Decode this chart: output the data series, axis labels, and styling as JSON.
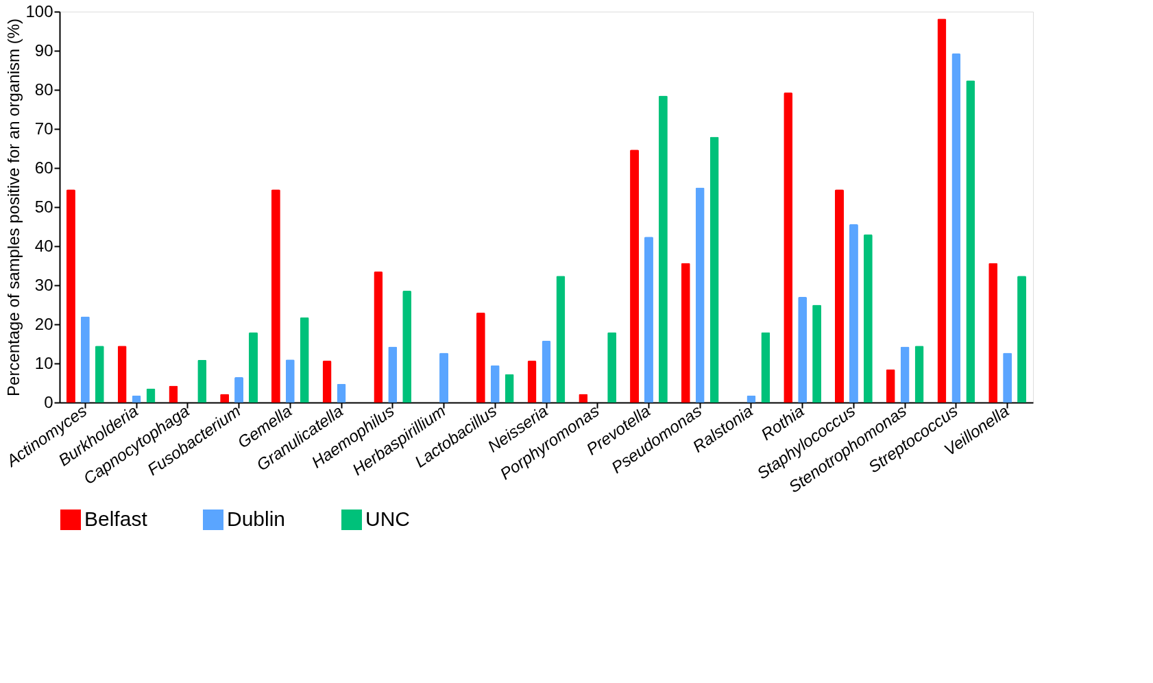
{
  "chart_data": {
    "type": "bar",
    "ylabel": "Percentage of samples positive for an organism (%)",
    "categories": [
      "Actinomyces",
      "Burkholderia",
      "Capnocytophaga",
      "Fusobacterium",
      "Gemella",
      "Granulicatella",
      "Haemophilus",
      "Herbaspirillium",
      "Lactobacillus",
      "Neisseria",
      "Porphyromonas",
      "Prevotella",
      "Pseudomonas",
      "Ralstonia",
      "Rothia",
      "Staphylococcus",
      "Stenotrophomonas",
      "Streptococcus",
      "Veillonella"
    ],
    "series": [
      {
        "name": "Belfast",
        "color": "#ff0000",
        "values": [
          54.5,
          14.5,
          4.3,
          2.2,
          54.5,
          10.7,
          33.5,
          0,
          23,
          10.7,
          2.2,
          64.7,
          35.7,
          0,
          79.3,
          54.5,
          8.5,
          98.2,
          35.7
        ]
      },
      {
        "name": "Dublin",
        "color": "#5aa5ff",
        "values": [
          22,
          1.8,
          0,
          6.5,
          11,
          4.8,
          14.3,
          12.7,
          9.5,
          15.8,
          0,
          42.4,
          55,
          1.8,
          27,
          45.6,
          14.3,
          89.3,
          12.7
        ]
      },
      {
        "name": "UNC",
        "color": "#00c17a",
        "values": [
          14.5,
          3.6,
          10.9,
          18,
          21.8,
          0,
          28.6,
          0,
          7.3,
          32.4,
          18,
          78.5,
          68,
          18,
          25,
          43,
          14.5,
          82.4,
          32.4
        ]
      }
    ],
    "ylim": [
      0,
      100
    ],
    "yticks": [
      0,
      10,
      20,
      30,
      40,
      50,
      60,
      70,
      80,
      90,
      100
    ],
    "grid": false,
    "legend": "bottom"
  }
}
